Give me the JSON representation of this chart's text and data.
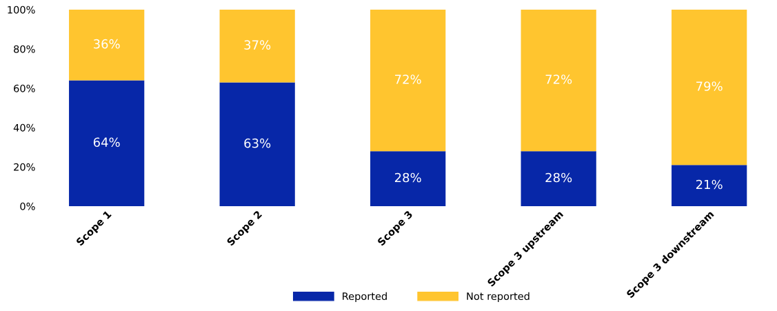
{
  "chart_data": {
    "type": "bar",
    "stacked": true,
    "categories": [
      "Scope 1",
      "Scope 2",
      "Scope 3",
      "Scope 3 upstream",
      "Scope 3 downstream"
    ],
    "series": [
      {
        "name": "Reported",
        "color": "#0727a8",
        "values": [
          64,
          63,
          28,
          28,
          21
        ],
        "value_labels": [
          "64%",
          "63%",
          "28%",
          "28%",
          "21%"
        ]
      },
      {
        "name": "Not reported",
        "color": "#ffc52f",
        "values": [
          36,
          37,
          72,
          72,
          79
        ],
        "value_labels": [
          "36%",
          "37%",
          "72%",
          "72%",
          "79%"
        ]
      }
    ],
    "ylim": [
      0,
      100
    ],
    "yticks": [
      {
        "value": 0,
        "label": "0%"
      },
      {
        "value": 20,
        "label": "20%"
      },
      {
        "value": 40,
        "label": "40%"
      },
      {
        "value": 60,
        "label": "60%"
      },
      {
        "value": 80,
        "label": "80%"
      },
      {
        "value": 100,
        "label": "100%"
      }
    ],
    "grid": false,
    "legend": "bottom"
  }
}
